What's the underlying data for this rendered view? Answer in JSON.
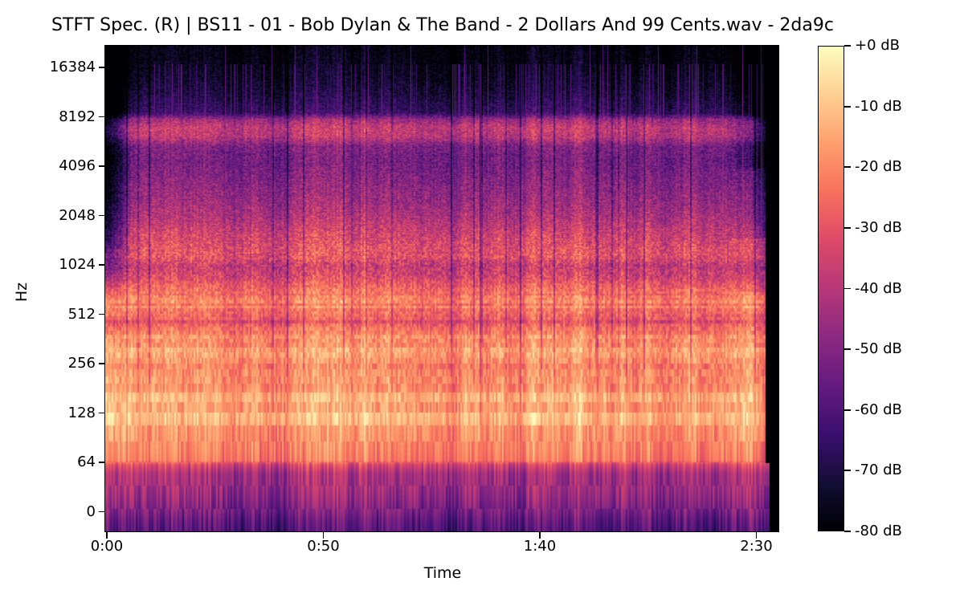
{
  "figure": {
    "background": "#ffffff",
    "text_color": "#000000"
  },
  "title": "STFT Spec. (R) | BS11 - 01 - Bob Dylan & The Band - 2 Dollars And 99 Cents.wav - 2da9c",
  "chart_data": {
    "type": "heatmap",
    "subtype": "stft_log_frequency_spectrogram",
    "title": "STFT Spec. (R) | BS11 - 01 - Bob Dylan & The Band - 2 Dollars And 99 Cents.wav - 2da9c",
    "xlabel": "Time",
    "ylabel": "Hz",
    "grid": false,
    "legend_position": "right-colorbar",
    "x_axis": {
      "range_seconds": [
        0,
        155.2
      ],
      "ticks": [
        {
          "label": "0:00",
          "seconds": 0
        },
        {
          "label": "0:50",
          "seconds": 50
        },
        {
          "label": "1:40",
          "seconds": 100
        },
        {
          "label": "2:30",
          "seconds": 150
        }
      ]
    },
    "y_axis": {
      "scale": "log2_above_64hz_linear_below",
      "range_hz": [
        0,
        22050
      ],
      "ticks": [
        {
          "label": "16384",
          "hz": 16384
        },
        {
          "label": "8192",
          "hz": 8192
        },
        {
          "label": "4096",
          "hz": 4096
        },
        {
          "label": "2048",
          "hz": 2048
        },
        {
          "label": "1024",
          "hz": 1024
        },
        {
          "label": "512",
          "hz": 512
        },
        {
          "label": "256",
          "hz": 256
        },
        {
          "label": "128",
          "hz": 128
        },
        {
          "label": "64",
          "hz": 64
        },
        {
          "label": "0",
          "hz": 0
        }
      ]
    },
    "colorbar": {
      "colormap": "magma",
      "range_db": [
        -80,
        0
      ],
      "ticks": [
        {
          "label": "+0 dB",
          "db": 0
        },
        {
          "label": "-10 dB",
          "db": -10
        },
        {
          "label": "-20 dB",
          "db": -20
        },
        {
          "label": "-30 dB",
          "db": -30
        },
        {
          "label": "-40 dB",
          "db": -40
        },
        {
          "label": "-50 dB",
          "db": -50
        },
        {
          "label": "-60 dB",
          "db": -60
        },
        {
          "label": "-70 dB",
          "db": -70
        },
        {
          "label": "-80 dB",
          "db": -80
        }
      ],
      "stops": [
        "#000004",
        "#140e36",
        "#3b0f70",
        "#641a80",
        "#8c2981",
        "#b73779",
        "#de4968",
        "#f7705c",
        "#fe9f6d",
        "#fecf92",
        "#fcfdbf"
      ]
    },
    "audio": {
      "channel": "R",
      "duration_seconds": 152,
      "hf_quiet_intro_seconds": 6.8,
      "hf_fadeout_start_seconds": 142
    },
    "mean_power_db_by_hz": [
      [
        22050,
        -78
      ],
      [
        17000,
        -76
      ],
      [
        12000,
        -71
      ],
      [
        8700,
        -64
      ],
      [
        7900,
        -44
      ],
      [
        7100,
        -36
      ],
      [
        6200,
        -38
      ],
      [
        5400,
        -50
      ],
      [
        4400,
        -52
      ],
      [
        3300,
        -48
      ],
      [
        2500,
        -44
      ],
      [
        2000,
        -40
      ],
      [
        1600,
        -34
      ],
      [
        1280,
        -30
      ],
      [
        1150,
        -29
      ],
      [
        1024,
        -36
      ],
      [
        860,
        -32
      ],
      [
        730,
        -24
      ],
      [
        616,
        -20
      ],
      [
        520,
        -23
      ],
      [
        465,
        -30
      ],
      [
        425,
        -24
      ],
      [
        371,
        -18
      ],
      [
        313,
        -16
      ],
      [
        265,
        -19
      ],
      [
        224,
        -17
      ],
      [
        189,
        -16
      ],
      [
        159,
        -13
      ],
      [
        127,
        -13
      ],
      [
        107,
        -15
      ],
      [
        91,
        -16
      ],
      [
        77,
        -17
      ],
      [
        66,
        -19
      ],
      [
        62,
        -30
      ],
      [
        54,
        -39
      ],
      [
        42,
        -41
      ],
      [
        31,
        -44
      ],
      [
        19,
        -49
      ],
      [
        10,
        -54
      ],
      [
        0.5,
        -57
      ]
    ],
    "db_variance_by_hz": [
      [
        22050,
        6
      ],
      [
        9000,
        7
      ],
      [
        7500,
        9
      ],
      [
        1024,
        9
      ],
      [
        700,
        6
      ],
      [
        64,
        6
      ],
      [
        60,
        7
      ],
      [
        0.5,
        7
      ]
    ]
  }
}
